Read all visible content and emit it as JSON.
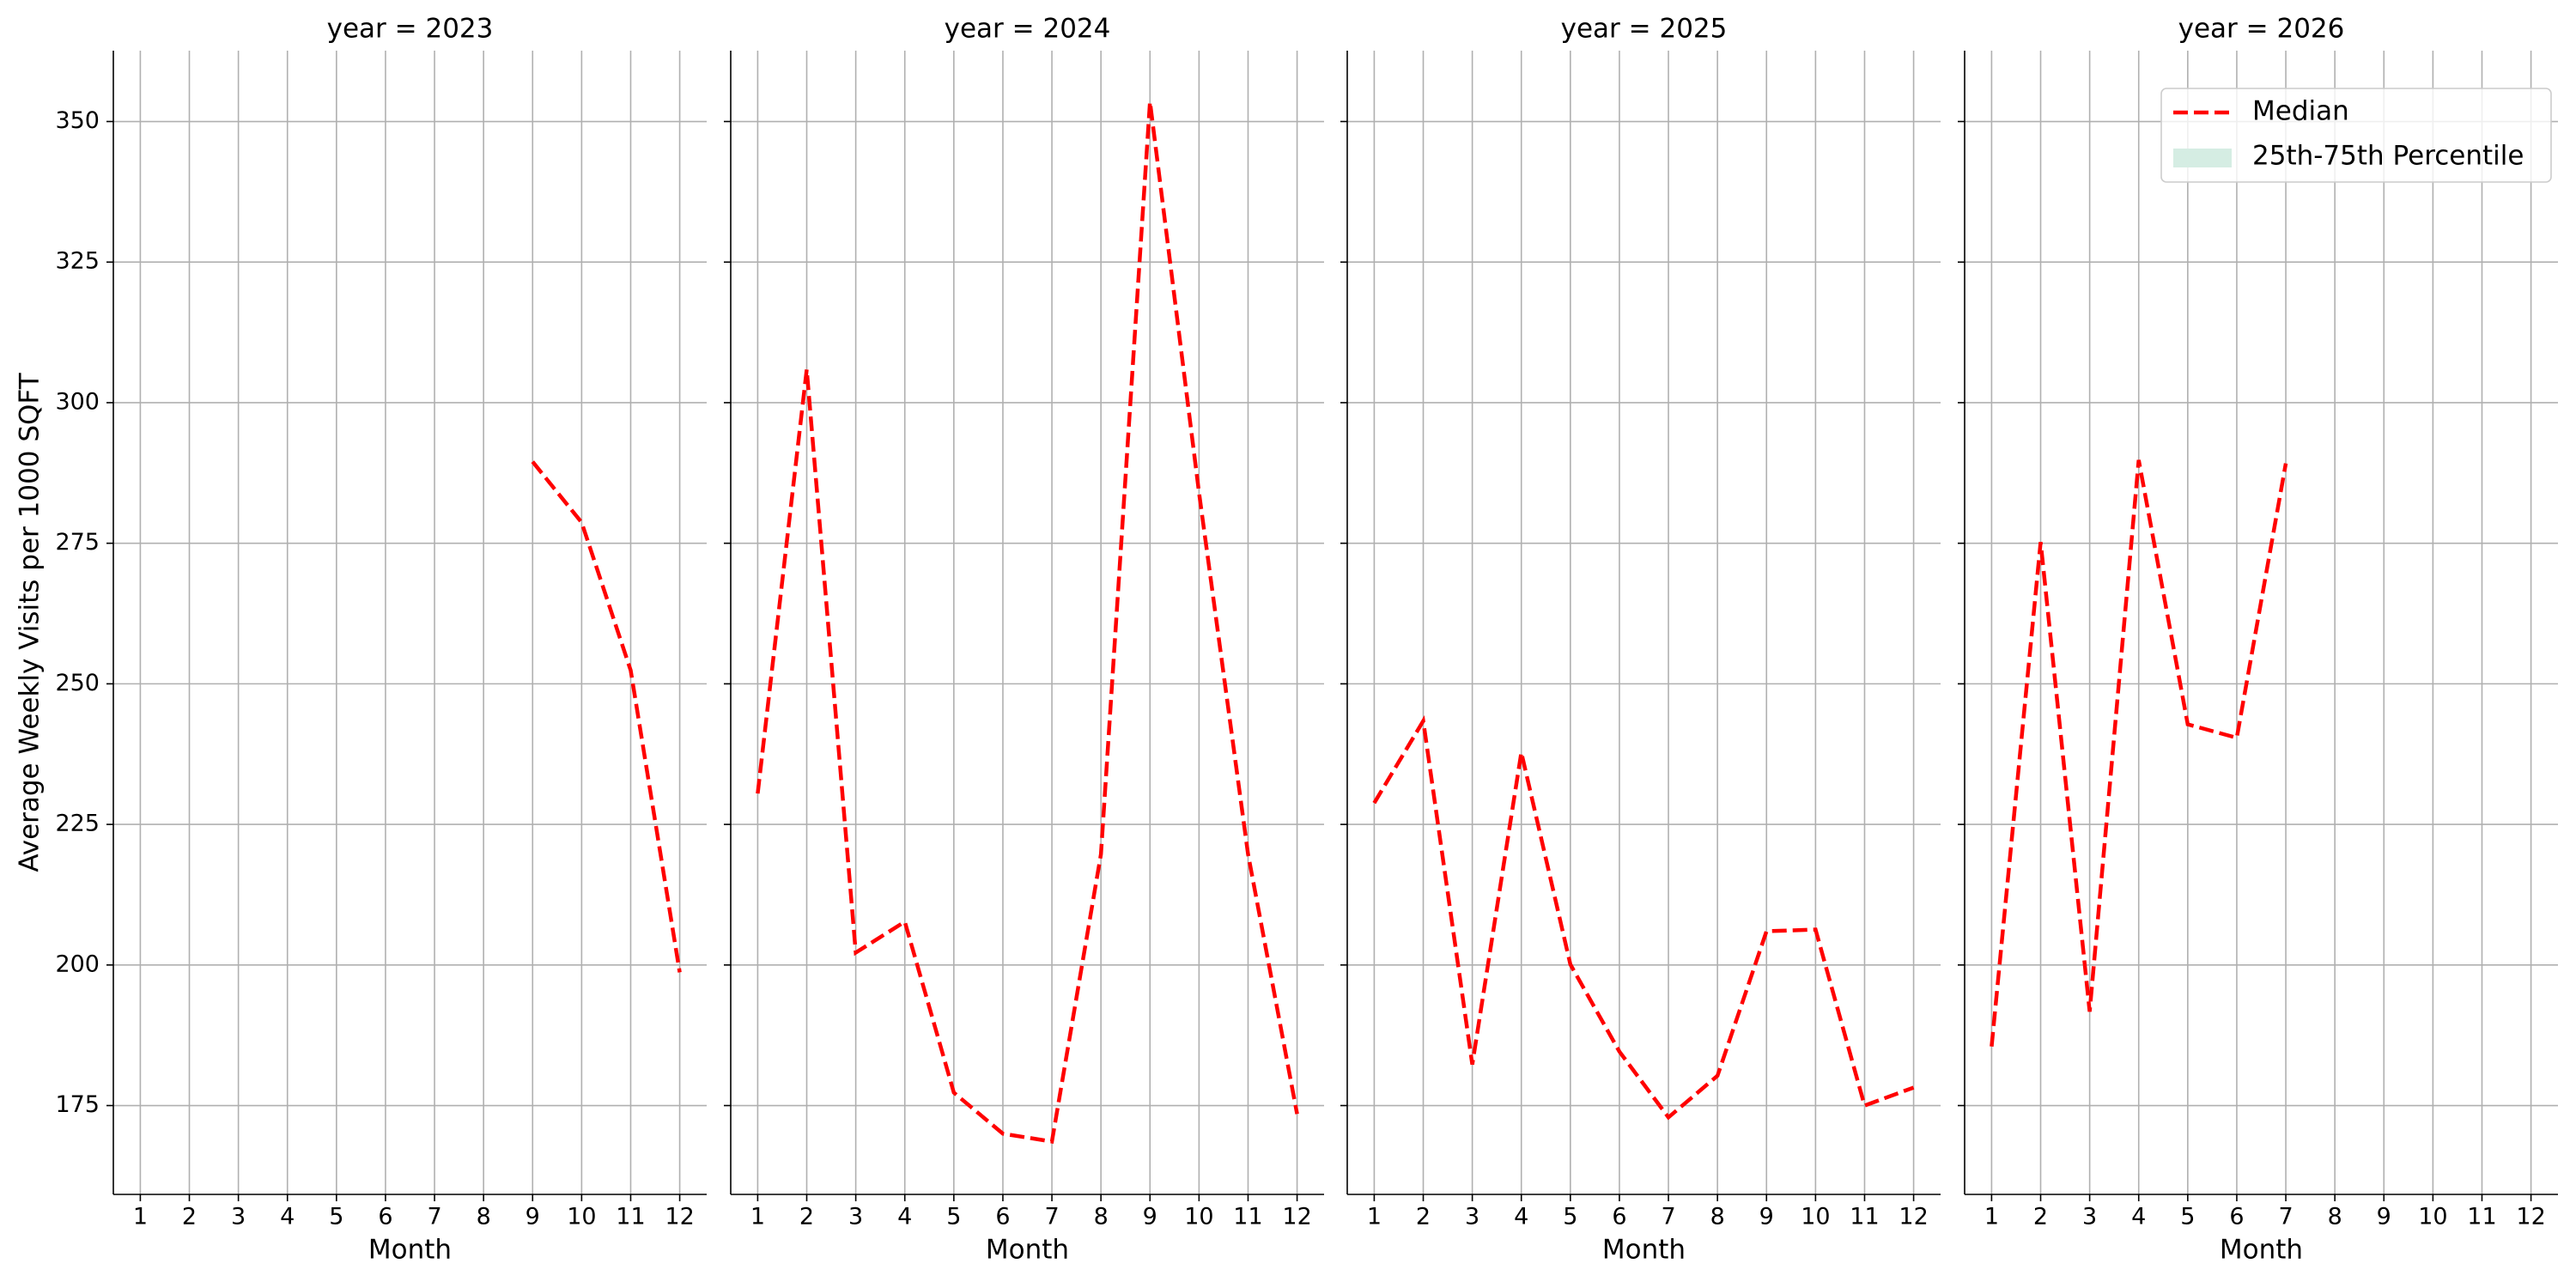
{
  "chart_data": [
    {
      "type": "line",
      "title": "year = 2023",
      "xlabel": "Month",
      "ylabel": "Average Weekly Visits per 1000 SQFT",
      "x": [
        1,
        2,
        3,
        4,
        5,
        6,
        7,
        8,
        9,
        10,
        11,
        12
      ],
      "xlim": [
        0.45,
        12.55
      ],
      "xticks": [
        1,
        2,
        3,
        4,
        5,
        6,
        7,
        8,
        9,
        10,
        11,
        12
      ],
      "ylim": [
        159.2,
        362.6
      ],
      "yticks": [
        175,
        200,
        225,
        250,
        275,
        300,
        325,
        350
      ],
      "grid": true,
      "series": [
        {
          "name": "Median",
          "color": "#ff0000",
          "style": "dashed",
          "values": [
            null,
            null,
            null,
            null,
            null,
            null,
            null,
            null,
            289.5,
            278.7,
            252.4,
            198.7
          ]
        }
      ]
    },
    {
      "type": "line",
      "title": "year = 2024",
      "xlabel": "Month",
      "x": [
        1,
        2,
        3,
        4,
        5,
        6,
        7,
        8,
        9,
        10,
        11,
        12
      ],
      "xlim": [
        0.45,
        12.55
      ],
      "xticks": [
        1,
        2,
        3,
        4,
        5,
        6,
        7,
        8,
        9,
        10,
        11,
        12
      ],
      "ylim": [
        159.2,
        362.6
      ],
      "yticks": [
        175,
        200,
        225,
        250,
        275,
        300,
        325,
        350
      ],
      "grid": true,
      "series": [
        {
          "name": "Median",
          "color": "#ff0000",
          "style": "dashed",
          "values": [
            230.5,
            305.9,
            202.2,
            207.7,
            177.3,
            170.0,
            168.6,
            219.7,
            353.5,
            284.0,
            219.7,
            173.5
          ]
        }
      ]
    },
    {
      "type": "line",
      "title": "year = 2025",
      "xlabel": "Month",
      "x": [
        1,
        2,
        3,
        4,
        5,
        6,
        7,
        8,
        9,
        10,
        11,
        12
      ],
      "xlim": [
        0.45,
        12.55
      ],
      "xticks": [
        1,
        2,
        3,
        4,
        5,
        6,
        7,
        8,
        9,
        10,
        11,
        12
      ],
      "ylim": [
        159.2,
        362.6
      ],
      "yticks": [
        175,
        200,
        225,
        250,
        275,
        300,
        325,
        350
      ],
      "grid": true,
      "series": [
        {
          "name": "Median",
          "color": "#ff0000",
          "style": "dashed",
          "values": [
            228.8,
            243.4,
            182.3,
            237.8,
            200.1,
            184.6,
            172.9,
            180.3,
            206.0,
            206.3,
            175.0,
            178.2
          ]
        }
      ]
    },
    {
      "type": "line",
      "title": "year = 2026",
      "xlabel": "Month",
      "x": [
        1,
        2,
        3,
        4,
        5,
        6,
        7,
        8,
        9,
        10,
        11,
        12
      ],
      "xlim": [
        0.45,
        12.55
      ],
      "xticks": [
        1,
        2,
        3,
        4,
        5,
        6,
        7,
        8,
        9,
        10,
        11,
        12
      ],
      "ylim": [
        159.2,
        362.6
      ],
      "yticks": [
        175,
        200,
        225,
        250,
        275,
        300,
        325,
        350
      ],
      "grid": true,
      "legend": "upper right",
      "series": [
        {
          "name": "Median",
          "color": "#ff0000",
          "style": "dashed",
          "values": [
            185.5,
            275.2,
            191.7,
            289.8,
            242.8,
            240.4,
            289.2,
            null,
            null,
            null,
            null,
            null
          ]
        },
        {
          "name": "25th-75th Percentile",
          "color": "#d5ede3",
          "style": "band",
          "values": [
            null,
            null,
            null,
            null,
            null,
            null,
            null,
            null,
            null,
            null,
            null,
            null
          ]
        }
      ]
    }
  ]
}
